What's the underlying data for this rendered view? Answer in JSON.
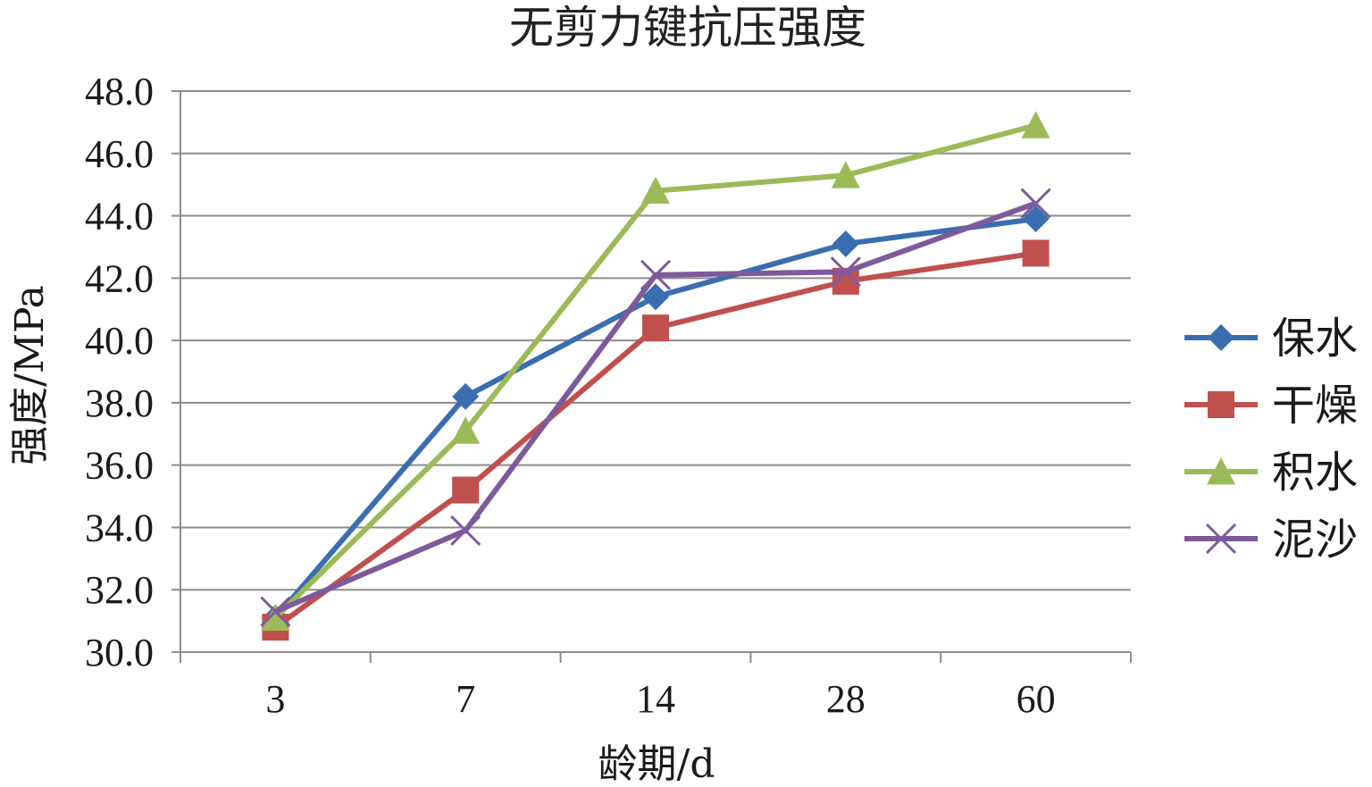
{
  "chart_data": {
    "type": "line",
    "title": "无剪力键抗压强度",
    "xlabel": "龄期/d",
    "ylabel": "强度/MPa",
    "categories": [
      "3",
      "7",
      "14",
      "28",
      "60"
    ],
    "ylim": [
      30.0,
      48.0
    ],
    "yticks": [
      "30.0",
      "32.0",
      "34.0",
      "36.0",
      "38.0",
      "40.0",
      "42.0",
      "44.0",
      "46.0",
      "48.0"
    ],
    "grid": true,
    "legend_position": "right",
    "series": [
      {
        "name": "保水",
        "values": [
          31.1,
          38.2,
          41.4,
          43.1,
          43.9
        ],
        "color": "#3A6EB0",
        "marker": "diamond"
      },
      {
        "name": "干燥",
        "values": [
          30.8,
          35.2,
          40.4,
          41.9,
          42.8
        ],
        "color": "#C0504D",
        "marker": "square"
      },
      {
        "name": "积水",
        "values": [
          31.1,
          37.1,
          44.8,
          45.3,
          46.9
        ],
        "color": "#9BBB59",
        "marker": "triangle"
      },
      {
        "name": "泥沙",
        "values": [
          31.3,
          33.9,
          42.1,
          42.2,
          44.4
        ],
        "color": "#7E5A9B",
        "marker": "x"
      }
    ]
  }
}
